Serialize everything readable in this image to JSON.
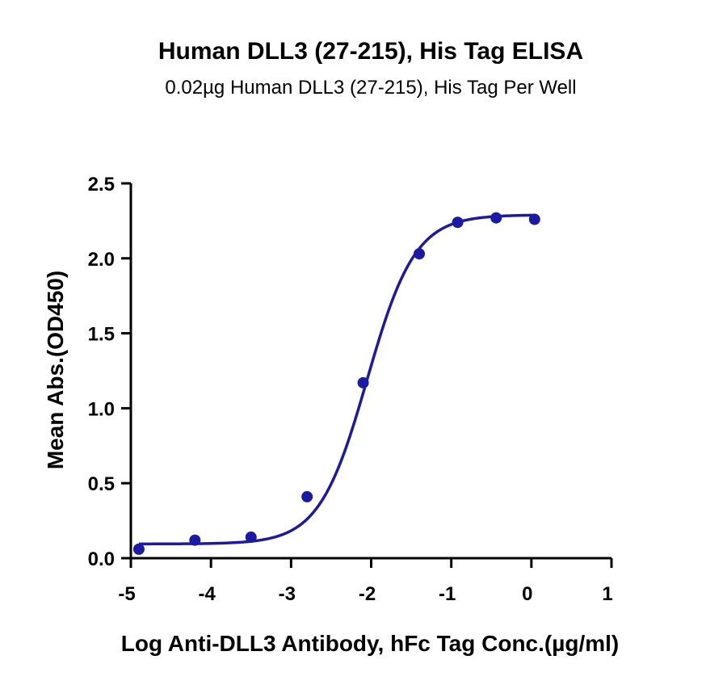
{
  "chart_data": {
    "type": "scatter",
    "title": "Human DLL3 (27-215), His Tag ELISA",
    "subtitle": "0.02µg Human DLL3 (27-215), His Tag Per Well",
    "xlabel": "Log Anti-DLL3 Antibody, hFc Tag Conc.(µg/ml)",
    "ylabel": "Mean Abs.(OD450)",
    "xlim": [
      -5,
      1
    ],
    "ylim": [
      0,
      2.5
    ],
    "xticks": [
      -5,
      -4,
      -3,
      -2,
      -1,
      0,
      1
    ],
    "xtick_labels": [
      "-5",
      "-4",
      "-3",
      "-2",
      "-1",
      "0",
      "1"
    ],
    "yticks": [
      0,
      0.5,
      1.0,
      1.5,
      2.0,
      2.5
    ],
    "ytick_labels": [
      "0.0",
      "0.5",
      "1.0",
      "1.5",
      "2.0",
      "2.5"
    ],
    "grid": false,
    "series": [
      {
        "x": [
          -4.9,
          -4.2,
          -3.5,
          -2.8,
          -2.1,
          -1.4,
          -0.92,
          -0.44,
          0.04
        ],
        "y": [
          0.06,
          0.12,
          0.14,
          0.41,
          1.17,
          2.03,
          2.24,
          2.27,
          2.26
        ],
        "color": "#1a1aa6"
      }
    ],
    "fit": {
      "model": "4PL",
      "bottom": 0.095,
      "top": 2.29,
      "logEC50": -2.05,
      "hill": 1.45,
      "color": "#1a1aa6"
    }
  }
}
